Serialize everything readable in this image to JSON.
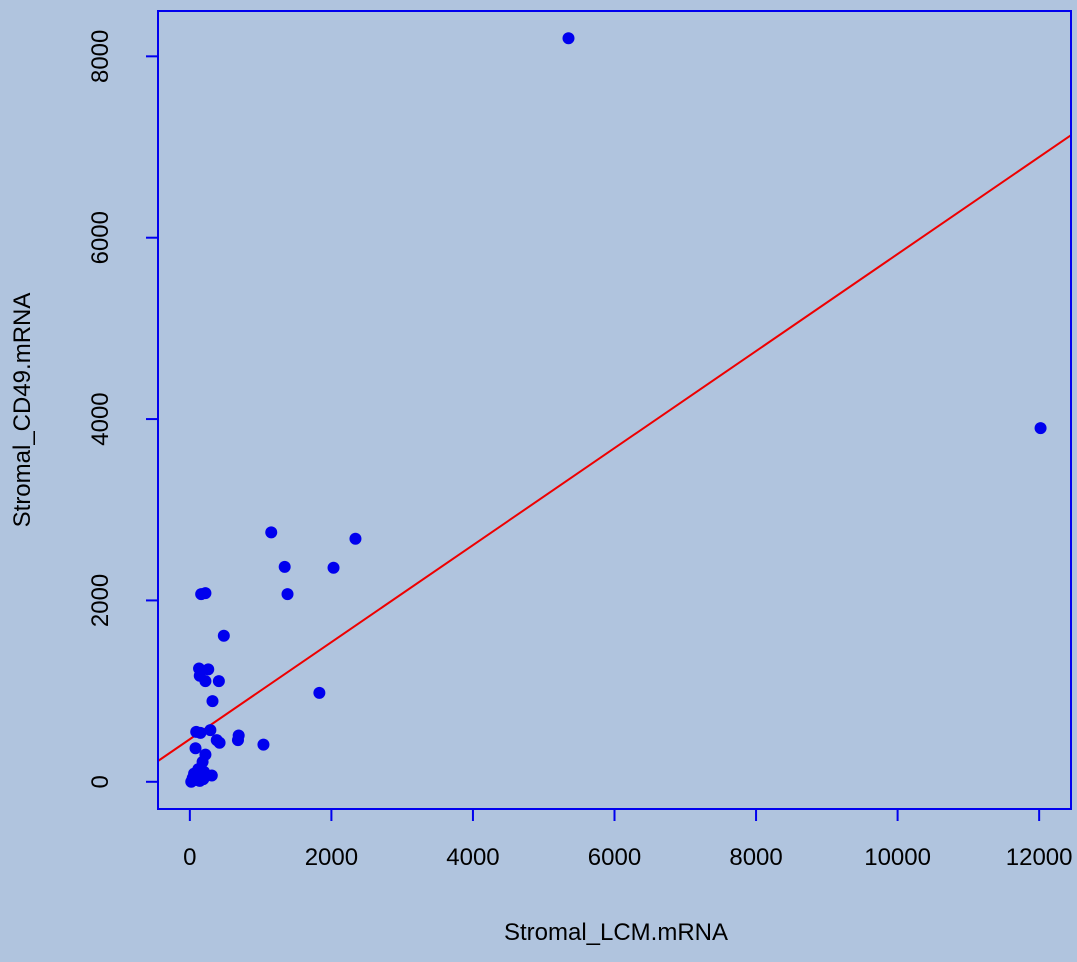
{
  "chart_data": {
    "type": "scatter",
    "title": "",
    "xlabel": "Stromal_LCM.mRNA",
    "ylabel": "Stromal_CD49.mRNA",
    "xlim": [
      -450,
      12450
    ],
    "ylim": [
      -300,
      8500
    ],
    "x_ticks": [
      0,
      2000,
      4000,
      6000,
      8000,
      10000,
      12000
    ],
    "y_ticks": [
      0,
      2000,
      4000,
      6000,
      8000
    ],
    "grid": false,
    "legend": "none",
    "colors": {
      "background": "#b0c4de",
      "frame": "#0000ee",
      "points": "#0000ee",
      "fit_line": "#ee0000",
      "text": "#000000"
    },
    "fit_line": {
      "intercept": 470,
      "slope": 0.535
    },
    "points": [
      [
        5350,
        8200
      ],
      [
        12020,
        3900
      ],
      [
        1150,
        2750
      ],
      [
        2340,
        2680
      ],
      [
        1340,
        2370
      ],
      [
        2030,
        2360
      ],
      [
        1380,
        2070
      ],
      [
        160,
        2070
      ],
      [
        220,
        2080
      ],
      [
        480,
        1610
      ],
      [
        130,
        1250
      ],
      [
        260,
        1240
      ],
      [
        140,
        1170
      ],
      [
        220,
        1110
      ],
      [
        410,
        1110
      ],
      [
        1830,
        980
      ],
      [
        320,
        890
      ],
      [
        690,
        510
      ],
      [
        680,
        460
      ],
      [
        380,
        460
      ],
      [
        420,
        430
      ],
      [
        1040,
        410
      ],
      [
        90,
        550
      ],
      [
        150,
        540
      ],
      [
        290,
        570
      ],
      [
        80,
        370
      ],
      [
        220,
        300
      ],
      [
        180,
        220
      ],
      [
        120,
        140
      ],
      [
        200,
        110
      ],
      [
        160,
        60
      ],
      [
        310,
        70
      ],
      [
        60,
        90
      ],
      [
        40,
        40
      ],
      [
        100,
        20
      ],
      [
        20,
        0
      ],
      [
        140,
        10
      ],
      [
        190,
        30
      ],
      [
        70,
        60
      ],
      [
        120,
        90
      ]
    ]
  }
}
